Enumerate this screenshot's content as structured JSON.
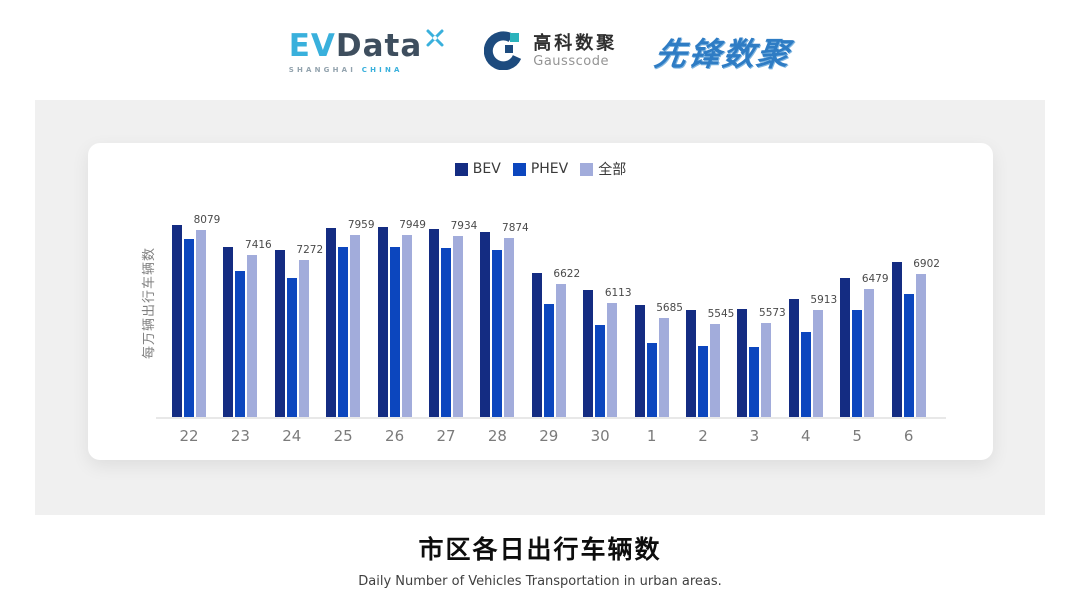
{
  "header": {
    "evdata_logo": {
      "ev": "EV",
      "data": "Data",
      "sub_left": "SHANGHAI",
      "sub_right": "CHINA"
    },
    "gausscode_logo": {
      "cn": "高科数聚",
      "en": "Gausscode"
    },
    "xianfeng_logo": {
      "text": "先锋数聚"
    }
  },
  "chart_data": {
    "type": "bar",
    "title": "市区各日出行车辆数",
    "subtitle": "Daily Number of Vehicles Transportation in urban areas.",
    "ylabel": "每万辆出行车辆数",
    "xlabel": "",
    "categories": [
      "22",
      "23",
      "24",
      "25",
      "26",
      "27",
      "28",
      "29",
      "30",
      "1",
      "2",
      "3",
      "4",
      "5",
      "6"
    ],
    "series": [
      {
        "name": "BEV",
        "color": "#142c82",
        "values": [
          8230,
          7640,
          7545,
          8155,
          8170,
          8130,
          8045,
          6930,
          6445,
          6040,
          5900,
          5930,
          6220,
          6790,
          7220
        ],
        "note": "values estimated from bar heights (unlabeled)"
      },
      {
        "name": "PHEV",
        "color": "#0c46be",
        "values": [
          7855,
          6975,
          6775,
          7640,
          7640,
          7610,
          7545,
          6065,
          5495,
          5010,
          4920,
          4915,
          5320,
          5920,
          6355
        ],
        "note": "values estimated from bar heights (unlabeled)"
      },
      {
        "name": "全部",
        "color": "#a2acdb",
        "values": [
          8079,
          7416,
          7272,
          7959,
          7949,
          7934,
          7874,
          6622,
          6113,
          5685,
          5545,
          5573,
          5913,
          6479,
          6902
        ],
        "note": "values shown as data labels on chart"
      }
    ],
    "value_labels": [
      "8079",
      "7416",
      "7272",
      "7959",
      "7949",
      "7934",
      "7874",
      "6622",
      "6113",
      "5685",
      "5545",
      "5573",
      "5913",
      "6479",
      "6902"
    ],
    "labeled_series": "全部",
    "ylim": [
      3000,
      8500
    ],
    "grid": false,
    "legend_position": "top"
  },
  "footer": {
    "title": "市区各日出行车辆数",
    "subtitle": "Daily Number of Vehicles Transportation in urban areas."
  }
}
